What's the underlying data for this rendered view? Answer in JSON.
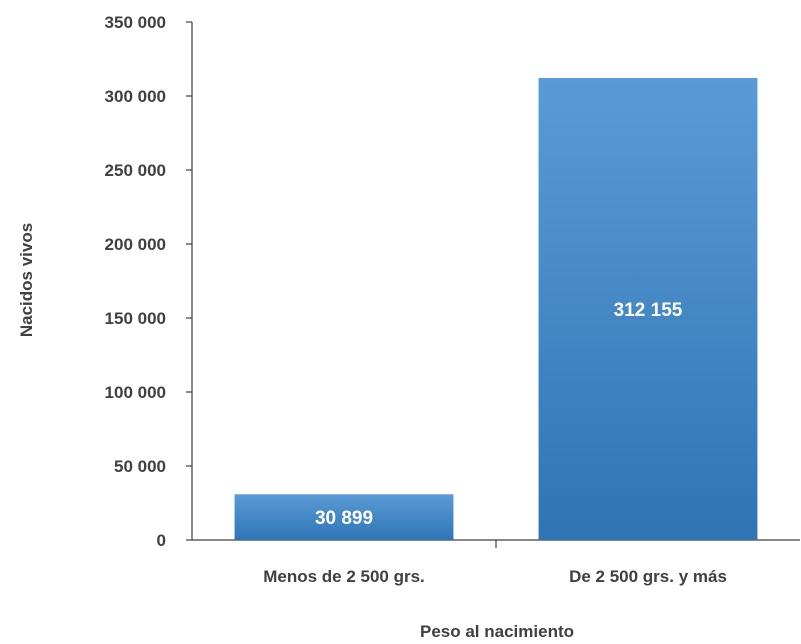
{
  "chart_data": {
    "type": "bar",
    "categories": [
      "Menos de 2 500 grs.",
      "De 2 500 grs. y más"
    ],
    "values": [
      30899,
      312155
    ],
    "data_labels": [
      "30 899",
      "312 155"
    ],
    "xlabel": "Peso al nacimiento",
    "ylabel": "Nacidos vivos",
    "ylim": [
      0,
      350000
    ],
    "yticks": [
      0,
      50000,
      100000,
      150000,
      200000,
      250000,
      300000,
      350000
    ],
    "ytick_labels": [
      "0",
      "50 000",
      "100 000",
      "150 000",
      "200 000",
      "250 000",
      "300 000",
      "350 000"
    ],
    "grid": false,
    "legend": "none",
    "colors": {
      "bar_top": "#5b9bd5",
      "bar_bottom": "#2e75b6",
      "text": "#404040",
      "axis": "#404040"
    }
  }
}
